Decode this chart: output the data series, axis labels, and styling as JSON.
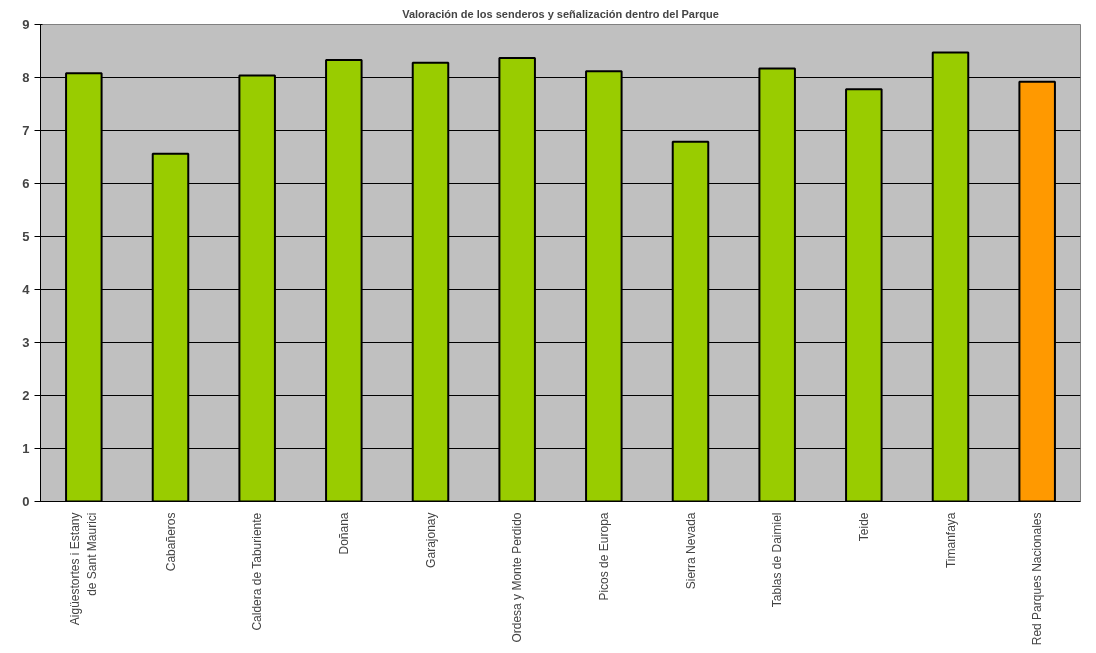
{
  "chart_data": {
    "type": "bar",
    "title": "Valoración de los senderos y señalización dentro del Parque",
    "categories": [
      "Aigüestortes i Estany de Sant Maurici",
      "Cabañeros",
      "Caldera de Taburiente",
      "Doñana",
      "Garajonay",
      "Ordesa y Monte Perdido",
      "Picos de Europa",
      "Sierra Nevada",
      "Tablas de Daimiel",
      "Teide",
      "Timanfaya",
      "Red Parques Nacionales"
    ],
    "values": [
      8.08,
      6.56,
      8.04,
      8.33,
      8.28,
      8.37,
      8.12,
      6.79,
      8.17,
      7.78,
      8.47,
      7.92
    ],
    "colors": [
      "#99cc00",
      "#99cc00",
      "#99cc00",
      "#99cc00",
      "#99cc00",
      "#99cc00",
      "#99cc00",
      "#99cc00",
      "#99cc00",
      "#99cc00",
      "#99cc00",
      "#ff9900"
    ],
    "ylim": [
      0,
      9
    ],
    "yticks": [
      0,
      1,
      2,
      3,
      4,
      5,
      6,
      7,
      8,
      9
    ],
    "grid": "y"
  }
}
